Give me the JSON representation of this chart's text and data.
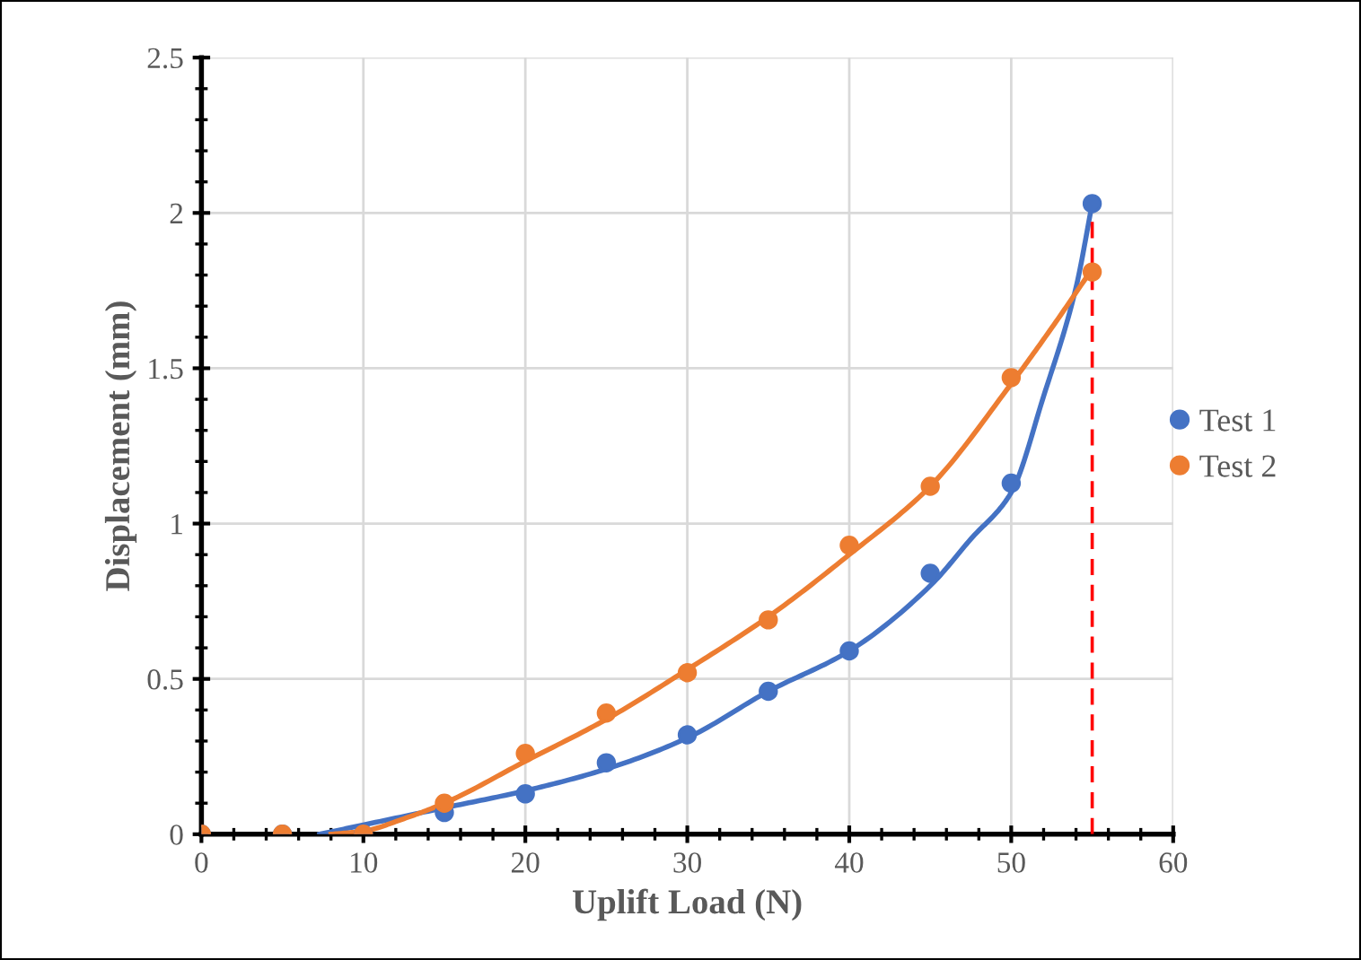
{
  "chart_data": {
    "type": "scatter",
    "xlabel": "Uplift Load (N)",
    "ylabel": "Displacement (mm)",
    "x": [
      0,
      5,
      10,
      15,
      20,
      25,
      30,
      35,
      40,
      45,
      50,
      55
    ],
    "series": [
      {
        "name": "Test 1",
        "color": "#4472c4",
        "values": [
          0,
          0,
          0,
          0.07,
          0.13,
          0.23,
          0.32,
          0.46,
          0.59,
          0.84,
          1.13,
          2.03
        ]
      },
      {
        "name": "Test 2",
        "color": "#ed7d31",
        "values": [
          0,
          0,
          0,
          0.1,
          0.26,
          0.39,
          0.52,
          0.69,
          0.93,
          1.12,
          1.47,
          1.81
        ]
      },
      {
        "type": "line",
        "color": "#4472c4",
        "marker": "none",
        "x": [
          7.3,
          10,
          15,
          20,
          25,
          30,
          35,
          40,
          45,
          47.5,
          50,
          52,
          54,
          55
        ],
        "values": [
          0,
          0.03,
          0.085,
          0.14,
          0.21,
          0.31,
          0.46,
          0.59,
          0.8,
          0.95,
          1.1,
          1.41,
          1.76,
          2.03
        ]
      },
      {
        "type": "line",
        "color": "#ed7d31",
        "marker": "none",
        "x": [
          8,
          10,
          12.5,
          15,
          20,
          25,
          30,
          35,
          40,
          45,
          50,
          52.5,
          55
        ],
        "values": [
          0,
          0.01,
          0.05,
          0.1,
          0.235,
          0.37,
          0.53,
          0.7,
          0.9,
          1.12,
          1.45,
          1.63,
          1.82
        ]
      },
      {
        "type": "line",
        "color": "#ff0000",
        "marker": "none",
        "line_style": "dashed",
        "x": [
          55,
          55
        ],
        "values": [
          0,
          2.03
        ]
      }
    ],
    "xlim": [
      0,
      60
    ],
    "xticks": [
      0,
      10,
      20,
      30,
      40,
      50,
      60
    ],
    "ylim": [
      0,
      2.5
    ],
    "yticks": [
      0,
      0.5,
      1,
      1.5,
      2,
      2.5
    ],
    "grid": true,
    "legend": "right",
    "marker": "circle"
  }
}
